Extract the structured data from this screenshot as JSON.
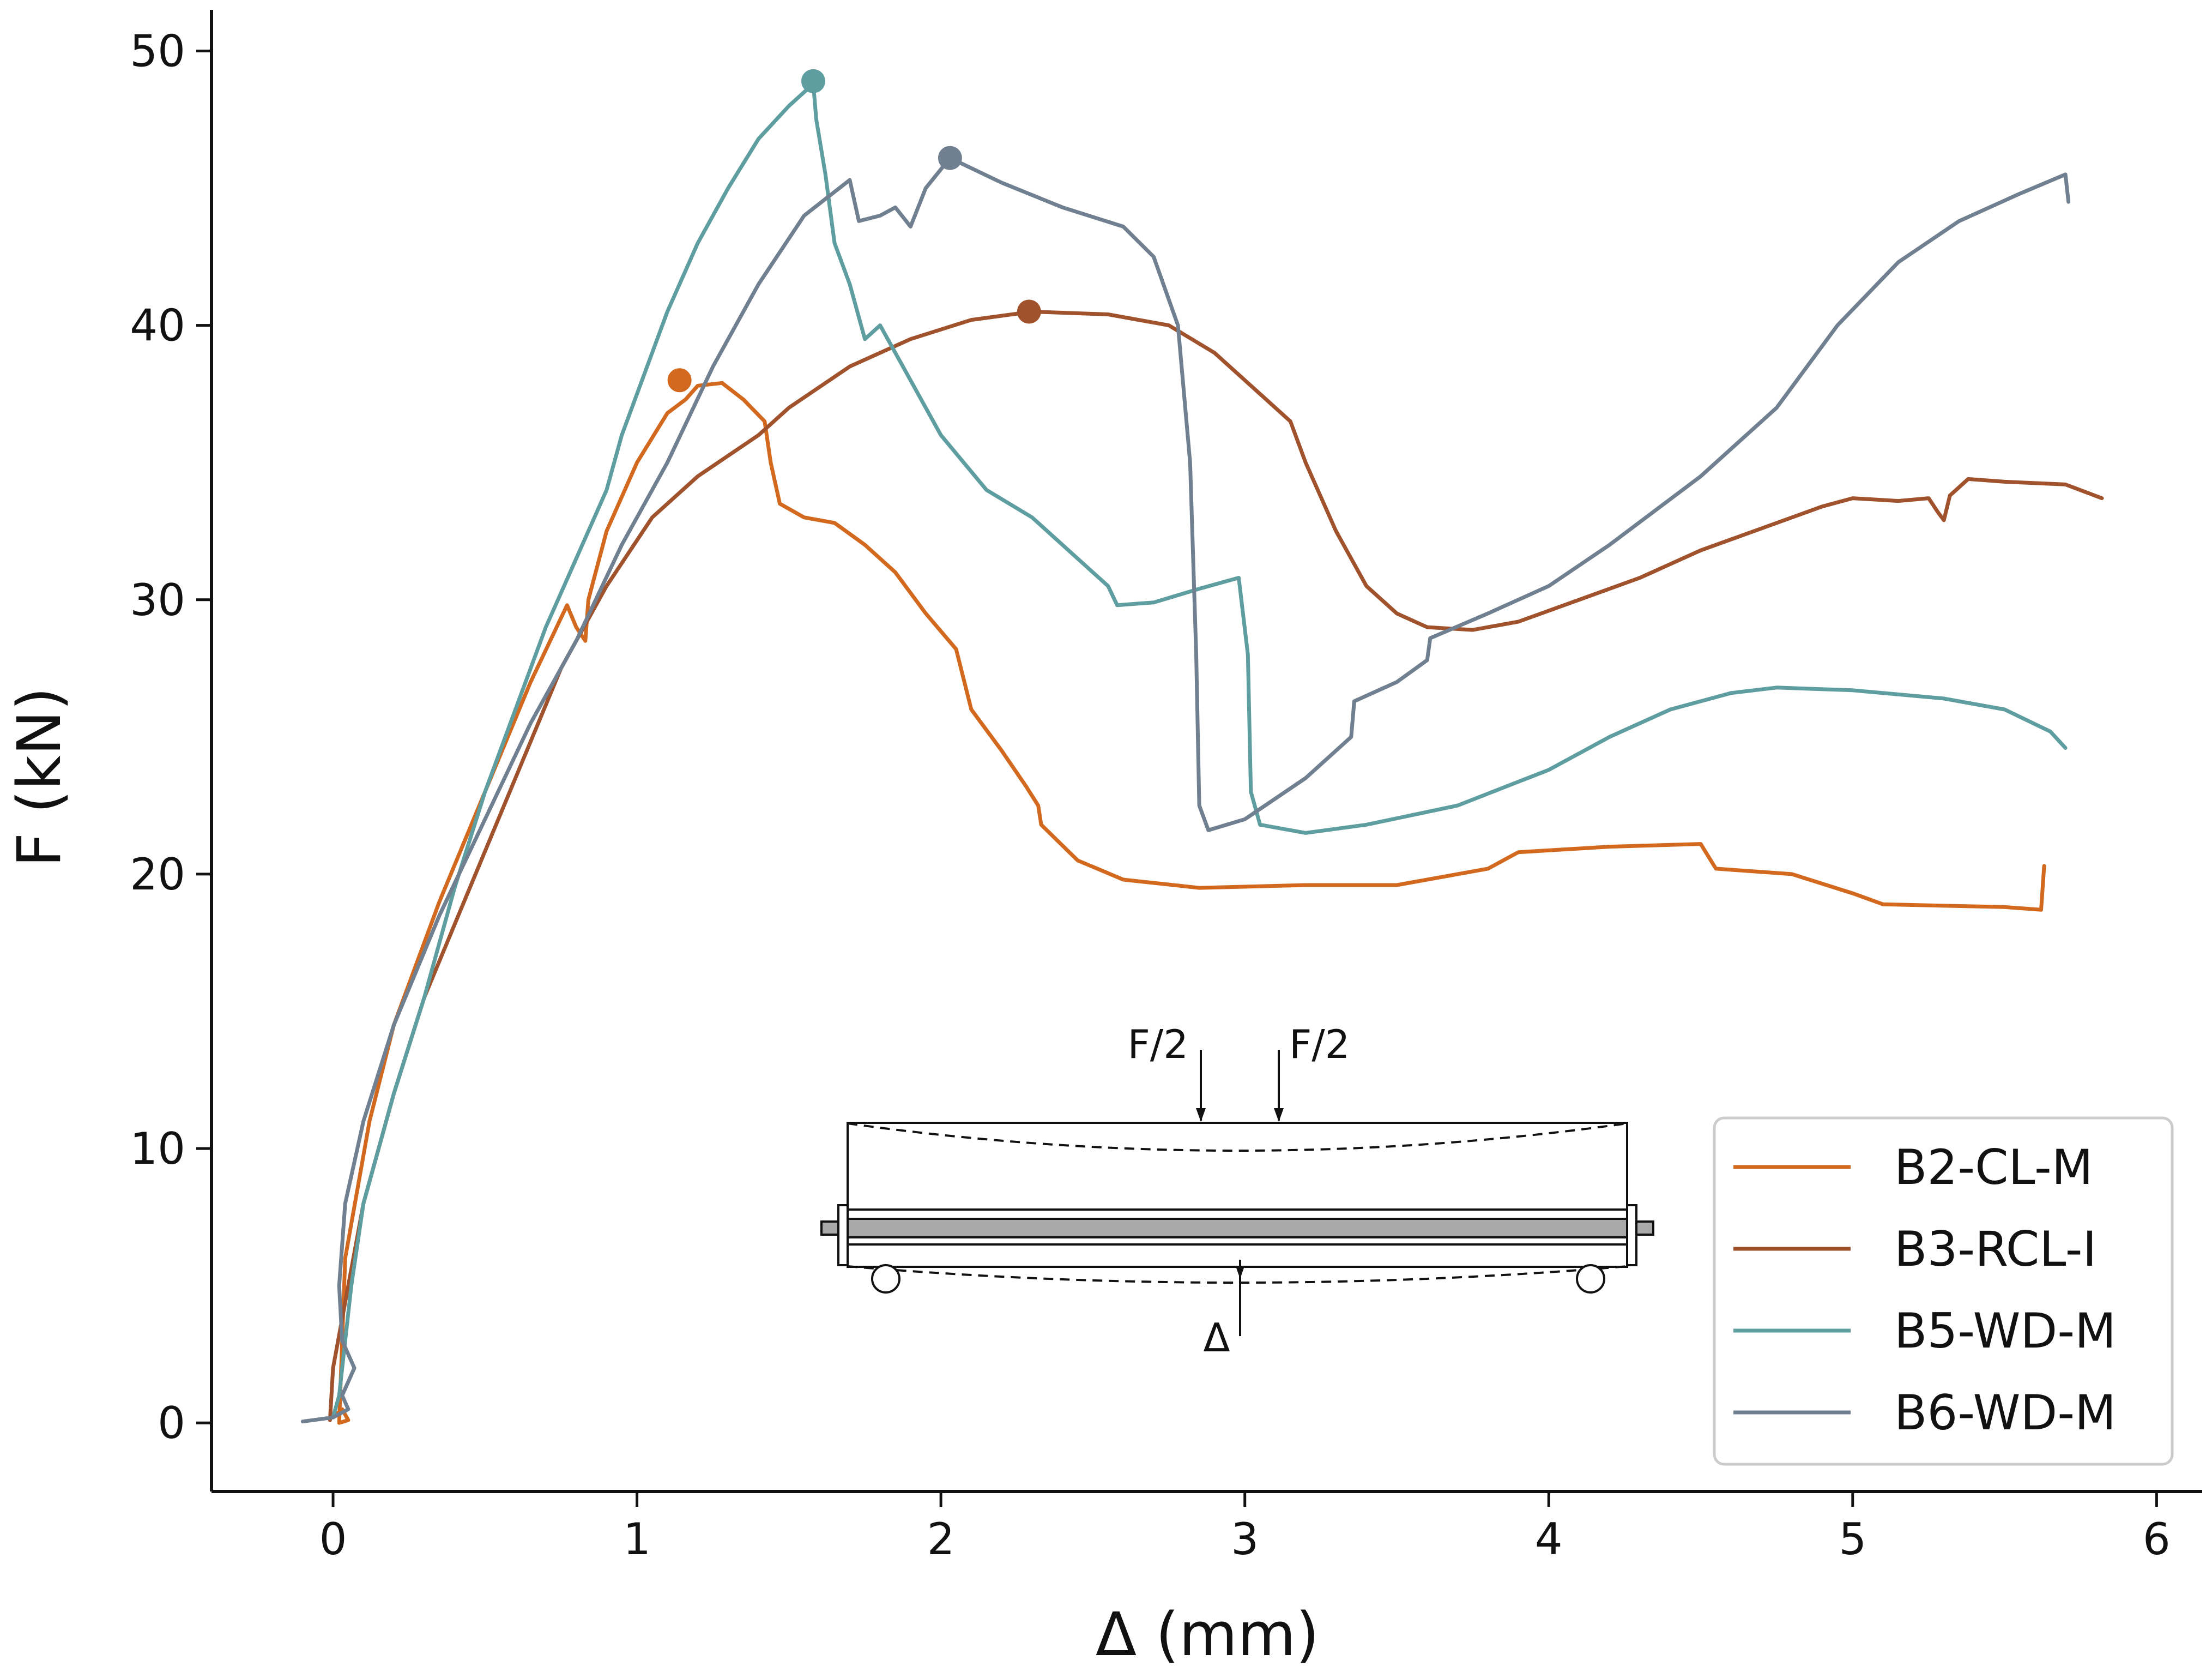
{
  "chart_data": {
    "type": "line",
    "xlabel": "Δ (mm)",
    "ylabel": "F (kN)",
    "xlim": [
      -0.4,
      6.15
    ],
    "ylim": [
      -2.5,
      51.5
    ],
    "xticks": [
      0,
      1,
      2,
      3,
      4,
      5,
      6
    ],
    "yticks": [
      0,
      10,
      20,
      30,
      40,
      50
    ],
    "grid": false,
    "legend_position": "bottom-right",
    "series": [
      {
        "name": "B2-CL-M",
        "color": "#d2691e",
        "peak": [
          1.14,
          38.0
        ],
        "points": [
          [
            0.0,
            0.2
          ],
          [
            0.03,
            0.5
          ],
          [
            0.05,
            0.1
          ],
          [
            0.02,
            0.0
          ],
          [
            0.04,
            6.0
          ],
          [
            0.12,
            11.0
          ],
          [
            0.2,
            14.5
          ],
          [
            0.35,
            19.0
          ],
          [
            0.5,
            23.0
          ],
          [
            0.65,
            27.0
          ],
          [
            0.77,
            29.8
          ],
          [
            0.8,
            29.0
          ],
          [
            0.83,
            28.5
          ],
          [
            0.84,
            30.0
          ],
          [
            0.9,
            32.5
          ],
          [
            1.0,
            35.0
          ],
          [
            1.1,
            36.8
          ],
          [
            1.16,
            37.3
          ],
          [
            1.2,
            37.8
          ],
          [
            1.28,
            37.9
          ],
          [
            1.35,
            37.3
          ],
          [
            1.42,
            36.5
          ],
          [
            1.44,
            35.0
          ],
          [
            1.47,
            33.5
          ],
          [
            1.55,
            33.0
          ],
          [
            1.65,
            32.8
          ],
          [
            1.75,
            32.0
          ],
          [
            1.85,
            31.0
          ],
          [
            1.95,
            29.5
          ],
          [
            2.05,
            28.2
          ],
          [
            2.1,
            26.0
          ],
          [
            2.2,
            24.5
          ],
          [
            2.28,
            23.2
          ],
          [
            2.32,
            22.5
          ],
          [
            2.33,
            21.8
          ],
          [
            2.45,
            20.5
          ],
          [
            2.6,
            19.8
          ],
          [
            2.85,
            19.5
          ],
          [
            3.2,
            19.6
          ],
          [
            3.5,
            19.6
          ],
          [
            3.8,
            20.2
          ],
          [
            3.9,
            20.8
          ],
          [
            4.2,
            21.0
          ],
          [
            4.5,
            21.1
          ],
          [
            4.55,
            20.2
          ],
          [
            4.8,
            20.0
          ],
          [
            5.0,
            19.3
          ],
          [
            5.1,
            18.9
          ],
          [
            5.5,
            18.8
          ],
          [
            5.62,
            18.7
          ],
          [
            5.63,
            20.3
          ]
        ]
      },
      {
        "name": "B3-RCL-I",
        "color": "#a0522d",
        "peak": [
          2.29,
          40.5
        ],
        "points": [
          [
            -0.01,
            0.1
          ],
          [
            0.0,
            2.0
          ],
          [
            0.05,
            5.0
          ],
          [
            0.1,
            8.0
          ],
          [
            0.2,
            12.0
          ],
          [
            0.3,
            15.5
          ],
          [
            0.45,
            19.5
          ],
          [
            0.6,
            23.5
          ],
          [
            0.75,
            27.5
          ],
          [
            0.9,
            30.5
          ],
          [
            1.05,
            33.0
          ],
          [
            1.2,
            34.5
          ],
          [
            1.4,
            36.0
          ],
          [
            1.5,
            37.0
          ],
          [
            1.7,
            38.5
          ],
          [
            1.9,
            39.5
          ],
          [
            2.1,
            40.2
          ],
          [
            2.3,
            40.5
          ],
          [
            2.55,
            40.4
          ],
          [
            2.75,
            40.0
          ],
          [
            2.9,
            39.0
          ],
          [
            3.05,
            37.5
          ],
          [
            3.15,
            36.5
          ],
          [
            3.2,
            35.0
          ],
          [
            3.3,
            32.5
          ],
          [
            3.4,
            30.5
          ],
          [
            3.5,
            29.5
          ],
          [
            3.6,
            29.0
          ],
          [
            3.75,
            28.9
          ],
          [
            3.9,
            29.2
          ],
          [
            4.1,
            30.0
          ],
          [
            4.3,
            30.8
          ],
          [
            4.5,
            31.8
          ],
          [
            4.7,
            32.6
          ],
          [
            4.9,
            33.4
          ],
          [
            5.0,
            33.7
          ],
          [
            5.15,
            33.6
          ],
          [
            5.25,
            33.7
          ],
          [
            5.28,
            33.2
          ],
          [
            5.3,
            32.9
          ],
          [
            5.32,
            33.8
          ],
          [
            5.38,
            34.4
          ],
          [
            5.5,
            34.3
          ],
          [
            5.7,
            34.2
          ],
          [
            5.82,
            33.7
          ]
        ]
      },
      {
        "name": "B5-WD-M",
        "color": "#5f9ea0",
        "peak": [
          1.58,
          48.9
        ],
        "points": [
          [
            0.0,
            0.2
          ],
          [
            0.02,
            1.0
          ],
          [
            0.04,
            3.0
          ],
          [
            0.06,
            5.0
          ],
          [
            0.1,
            8.0
          ],
          [
            0.2,
            12.0
          ],
          [
            0.3,
            15.5
          ],
          [
            0.4,
            19.5
          ],
          [
            0.5,
            23.0
          ],
          [
            0.6,
            26.0
          ],
          [
            0.7,
            29.0
          ],
          [
            0.8,
            31.5
          ],
          [
            0.9,
            34.0
          ],
          [
            0.95,
            36.0
          ],
          [
            1.0,
            37.5
          ],
          [
            1.1,
            40.5
          ],
          [
            1.2,
            43.0
          ],
          [
            1.3,
            45.0
          ],
          [
            1.4,
            46.8
          ],
          [
            1.5,
            48.0
          ],
          [
            1.58,
            48.8
          ],
          [
            1.59,
            47.5
          ],
          [
            1.62,
            45.5
          ],
          [
            1.65,
            43.0
          ],
          [
            1.7,
            41.5
          ],
          [
            1.75,
            39.5
          ],
          [
            1.8,
            40.0
          ],
          [
            1.85,
            39.0
          ],
          [
            1.9,
            38.0
          ],
          [
            2.0,
            36.0
          ],
          [
            2.15,
            34.0
          ],
          [
            2.3,
            33.0
          ],
          [
            2.45,
            31.5
          ],
          [
            2.55,
            30.5
          ],
          [
            2.58,
            29.8
          ],
          [
            2.7,
            29.9
          ],
          [
            2.85,
            30.4
          ],
          [
            2.98,
            30.8
          ],
          [
            3.01,
            28.0
          ],
          [
            3.02,
            23.0
          ],
          [
            3.05,
            21.8
          ],
          [
            3.2,
            21.5
          ],
          [
            3.4,
            21.8
          ],
          [
            3.7,
            22.5
          ],
          [
            4.0,
            23.8
          ],
          [
            4.2,
            25.0
          ],
          [
            4.4,
            26.0
          ],
          [
            4.6,
            26.6
          ],
          [
            4.75,
            26.8
          ],
          [
            5.0,
            26.7
          ],
          [
            5.3,
            26.4
          ],
          [
            5.5,
            26.0
          ],
          [
            5.65,
            25.2
          ],
          [
            5.7,
            24.6
          ]
        ]
      },
      {
        "name": "B6-WD-M",
        "color": "#708090",
        "peak": [
          2.03,
          46.1
        ],
        "points": [
          [
            -0.1,
            0.05
          ],
          [
            0.0,
            0.2
          ],
          [
            0.05,
            0.5
          ],
          [
            0.03,
            1.0
          ],
          [
            0.07,
            2.0
          ],
          [
            0.03,
            3.0
          ],
          [
            0.02,
            5.0
          ],
          [
            0.04,
            8.0
          ],
          [
            0.1,
            11.0
          ],
          [
            0.2,
            14.5
          ],
          [
            0.35,
            18.5
          ],
          [
            0.5,
            22.0
          ],
          [
            0.65,
            25.5
          ],
          [
            0.8,
            28.5
          ],
          [
            0.95,
            32.0
          ],
          [
            1.1,
            35.0
          ],
          [
            1.25,
            38.5
          ],
          [
            1.4,
            41.5
          ],
          [
            1.55,
            44.0
          ],
          [
            1.7,
            45.3
          ],
          [
            1.73,
            43.8
          ],
          [
            1.8,
            44.0
          ],
          [
            1.85,
            44.3
          ],
          [
            1.9,
            43.6
          ],
          [
            1.95,
            45.0
          ],
          [
            2.03,
            46.1
          ],
          [
            2.2,
            45.2
          ],
          [
            2.4,
            44.3
          ],
          [
            2.6,
            43.6
          ],
          [
            2.7,
            42.5
          ],
          [
            2.78,
            40.0
          ],
          [
            2.82,
            35.0
          ],
          [
            2.84,
            28.0
          ],
          [
            2.85,
            22.5
          ],
          [
            2.88,
            21.6
          ],
          [
            3.0,
            22.0
          ],
          [
            3.2,
            23.5
          ],
          [
            3.35,
            25.0
          ],
          [
            3.36,
            26.3
          ],
          [
            3.5,
            27.0
          ],
          [
            3.6,
            27.8
          ],
          [
            3.61,
            28.6
          ],
          [
            3.8,
            29.5
          ],
          [
            4.0,
            30.5
          ],
          [
            4.2,
            32.0
          ],
          [
            4.5,
            34.5
          ],
          [
            4.75,
            37.0
          ],
          [
            4.95,
            40.0
          ],
          [
            5.15,
            42.3
          ],
          [
            5.35,
            43.8
          ],
          [
            5.55,
            44.8
          ],
          [
            5.7,
            45.5
          ],
          [
            5.71,
            44.5
          ]
        ]
      }
    ],
    "inset": {
      "load_labels": [
        "F/2",
        "F/2"
      ],
      "deflection_label": "Δ"
    }
  }
}
